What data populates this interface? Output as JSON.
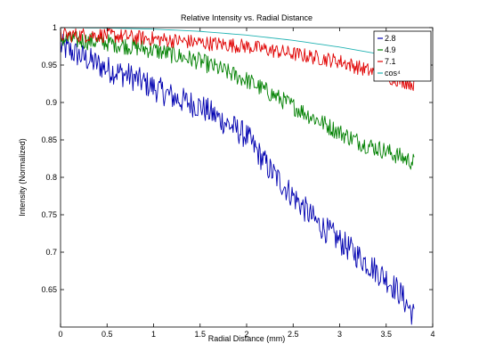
{
  "chart_data": {
    "type": "line",
    "title": "Relative Intensity vs. Radial Distance",
    "xlabel": "Radial Distance (mm)",
    "ylabel": "Intensity (Normalized)",
    "xlim": [
      0,
      4
    ],
    "ylim": [
      0.6,
      1.0
    ],
    "xticks": [
      "0",
      "0.5",
      "1",
      "1.5",
      "2",
      "2.5",
      "3",
      "3.5",
      "4"
    ],
    "yticks": [
      "0.65",
      "0.7",
      "0.75",
      "0.8",
      "0.85",
      "0.9",
      "0.95",
      "1"
    ],
    "grid": false,
    "legend_position": "top-right",
    "series": [
      {
        "name": "2.8",
        "color": "#0000b0",
        "x": [
          0,
          0.25,
          0.5,
          0.75,
          1.0,
          1.25,
          1.5,
          1.75,
          2.0,
          2.25,
          2.5,
          2.75,
          3.0,
          3.25,
          3.5,
          3.65,
          3.8
        ],
        "y": [
          0.975,
          0.96,
          0.945,
          0.935,
          0.92,
          0.905,
          0.895,
          0.875,
          0.855,
          0.81,
          0.775,
          0.74,
          0.715,
          0.69,
          0.665,
          0.645,
          0.615
        ]
      },
      {
        "name": "4.9",
        "color": "#008000",
        "x": [
          0,
          0.5,
          1.0,
          1.5,
          2.0,
          2.5,
          3.0,
          3.25,
          3.5,
          3.8
        ],
        "y": [
          0.985,
          0.98,
          0.97,
          0.955,
          0.93,
          0.895,
          0.86,
          0.845,
          0.835,
          0.82
        ]
      },
      {
        "name": "7.1",
        "color": "#e00000",
        "x": [
          0,
          0.5,
          1.0,
          1.5,
          2.0,
          2.5,
          3.0,
          3.5,
          3.8
        ],
        "y": [
          0.99,
          0.99,
          0.985,
          0.98,
          0.975,
          0.965,
          0.955,
          0.935,
          0.925
        ]
      },
      {
        "name": "cos⁴",
        "color": "#20b2b2",
        "x": [
          0,
          0.5,
          1.0,
          1.5,
          2.0,
          2.5,
          3.0,
          3.5,
          3.8
        ],
        "y": [
          1.0,
          0.9995,
          0.998,
          0.995,
          0.99,
          0.983,
          0.974,
          0.963,
          0.956
        ]
      }
    ]
  }
}
